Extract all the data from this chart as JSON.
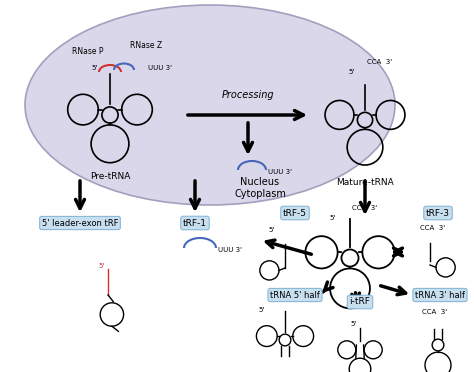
{
  "bg_color": "#ffffff",
  "ellipse_color": "#d6d3e8",
  "label_box_color": "#c8dff0",
  "label_box_edge": "#88b8d8",
  "nucleus_label": "Nucleus",
  "cytoplasm_label": "Cytoplasm",
  "processing_label": "Processing",
  "pre_trna_label": "Pre-tRNA",
  "mature_trna_label": "Mature-tRNA",
  "rnase_p": "RNase P",
  "rnase_z": "RNase Z",
  "leader_exon": "5' leader-exon tRF",
  "trf1": "tRF-1",
  "trf5": "tRF-5",
  "trf3": "tRF-3",
  "trna5half": "tRNA 5' half",
  "trna3half": "tRNA 3' half",
  "itrf": "i-tRF",
  "red_arc": "#cc3333",
  "blue_arc": "#4466bb"
}
